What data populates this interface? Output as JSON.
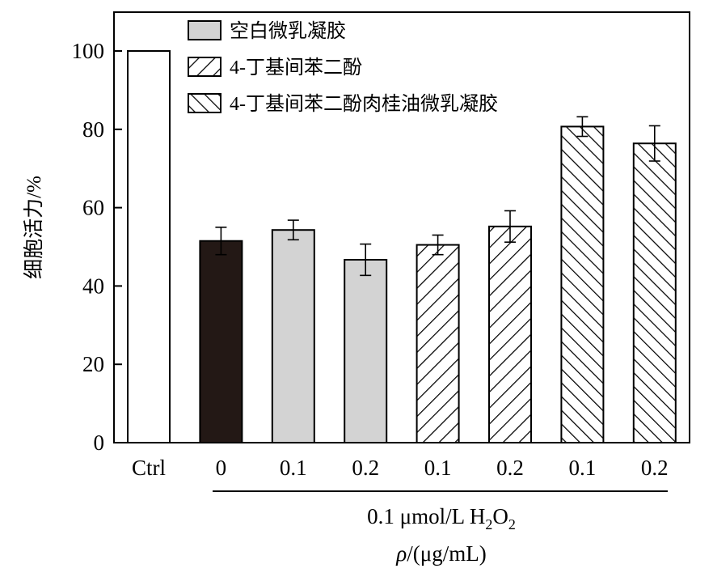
{
  "chart_data": {
    "type": "bar",
    "categories": [
      "Ctrl",
      "0",
      "0.1",
      "0.2",
      "0.1",
      "0.2",
      "0.1",
      "0.2"
    ],
    "values": [
      100,
      51.5,
      54.3,
      46.7,
      50.5,
      55.2,
      80.7,
      76.4
    ],
    "errors": [
      0,
      3.5,
      2.5,
      4.0,
      2.5,
      4.0,
      2.5,
      4.5
    ],
    "groups": [
      "ctrl",
      "model",
      "blank",
      "blank",
      "bhr",
      "bhr",
      "cin",
      "cin"
    ],
    "legend": [
      {
        "key": "blank",
        "label": "空白微乳凝胶"
      },
      {
        "key": "bhr",
        "label": "4-丁基间苯二酚"
      },
      {
        "key": "cin",
        "label": "4-丁基间苯二酚肉桂油微乳凝胶"
      }
    ],
    "legend_position": "top-left",
    "ylabel": "细胞活力/%",
    "ylim": [
      0,
      100
    ],
    "yticks": [
      0,
      20,
      40,
      60,
      80,
      100
    ],
    "xlabel_line1_prefix": "0.1 μmol/L H",
    "xlabel_line1_sub1": "2",
    "xlabel_line1_mid": "O",
    "xlabel_line1_sub2": "2",
    "xlabel_line2_rho": "ρ",
    "xlabel_line2_rest": "/(μg/mL)",
    "grid": false,
    "colors": {
      "ctrl": "#ffffff",
      "model": "#231815",
      "blank": "#d3d3d3",
      "hatch": "#000000"
    }
  }
}
